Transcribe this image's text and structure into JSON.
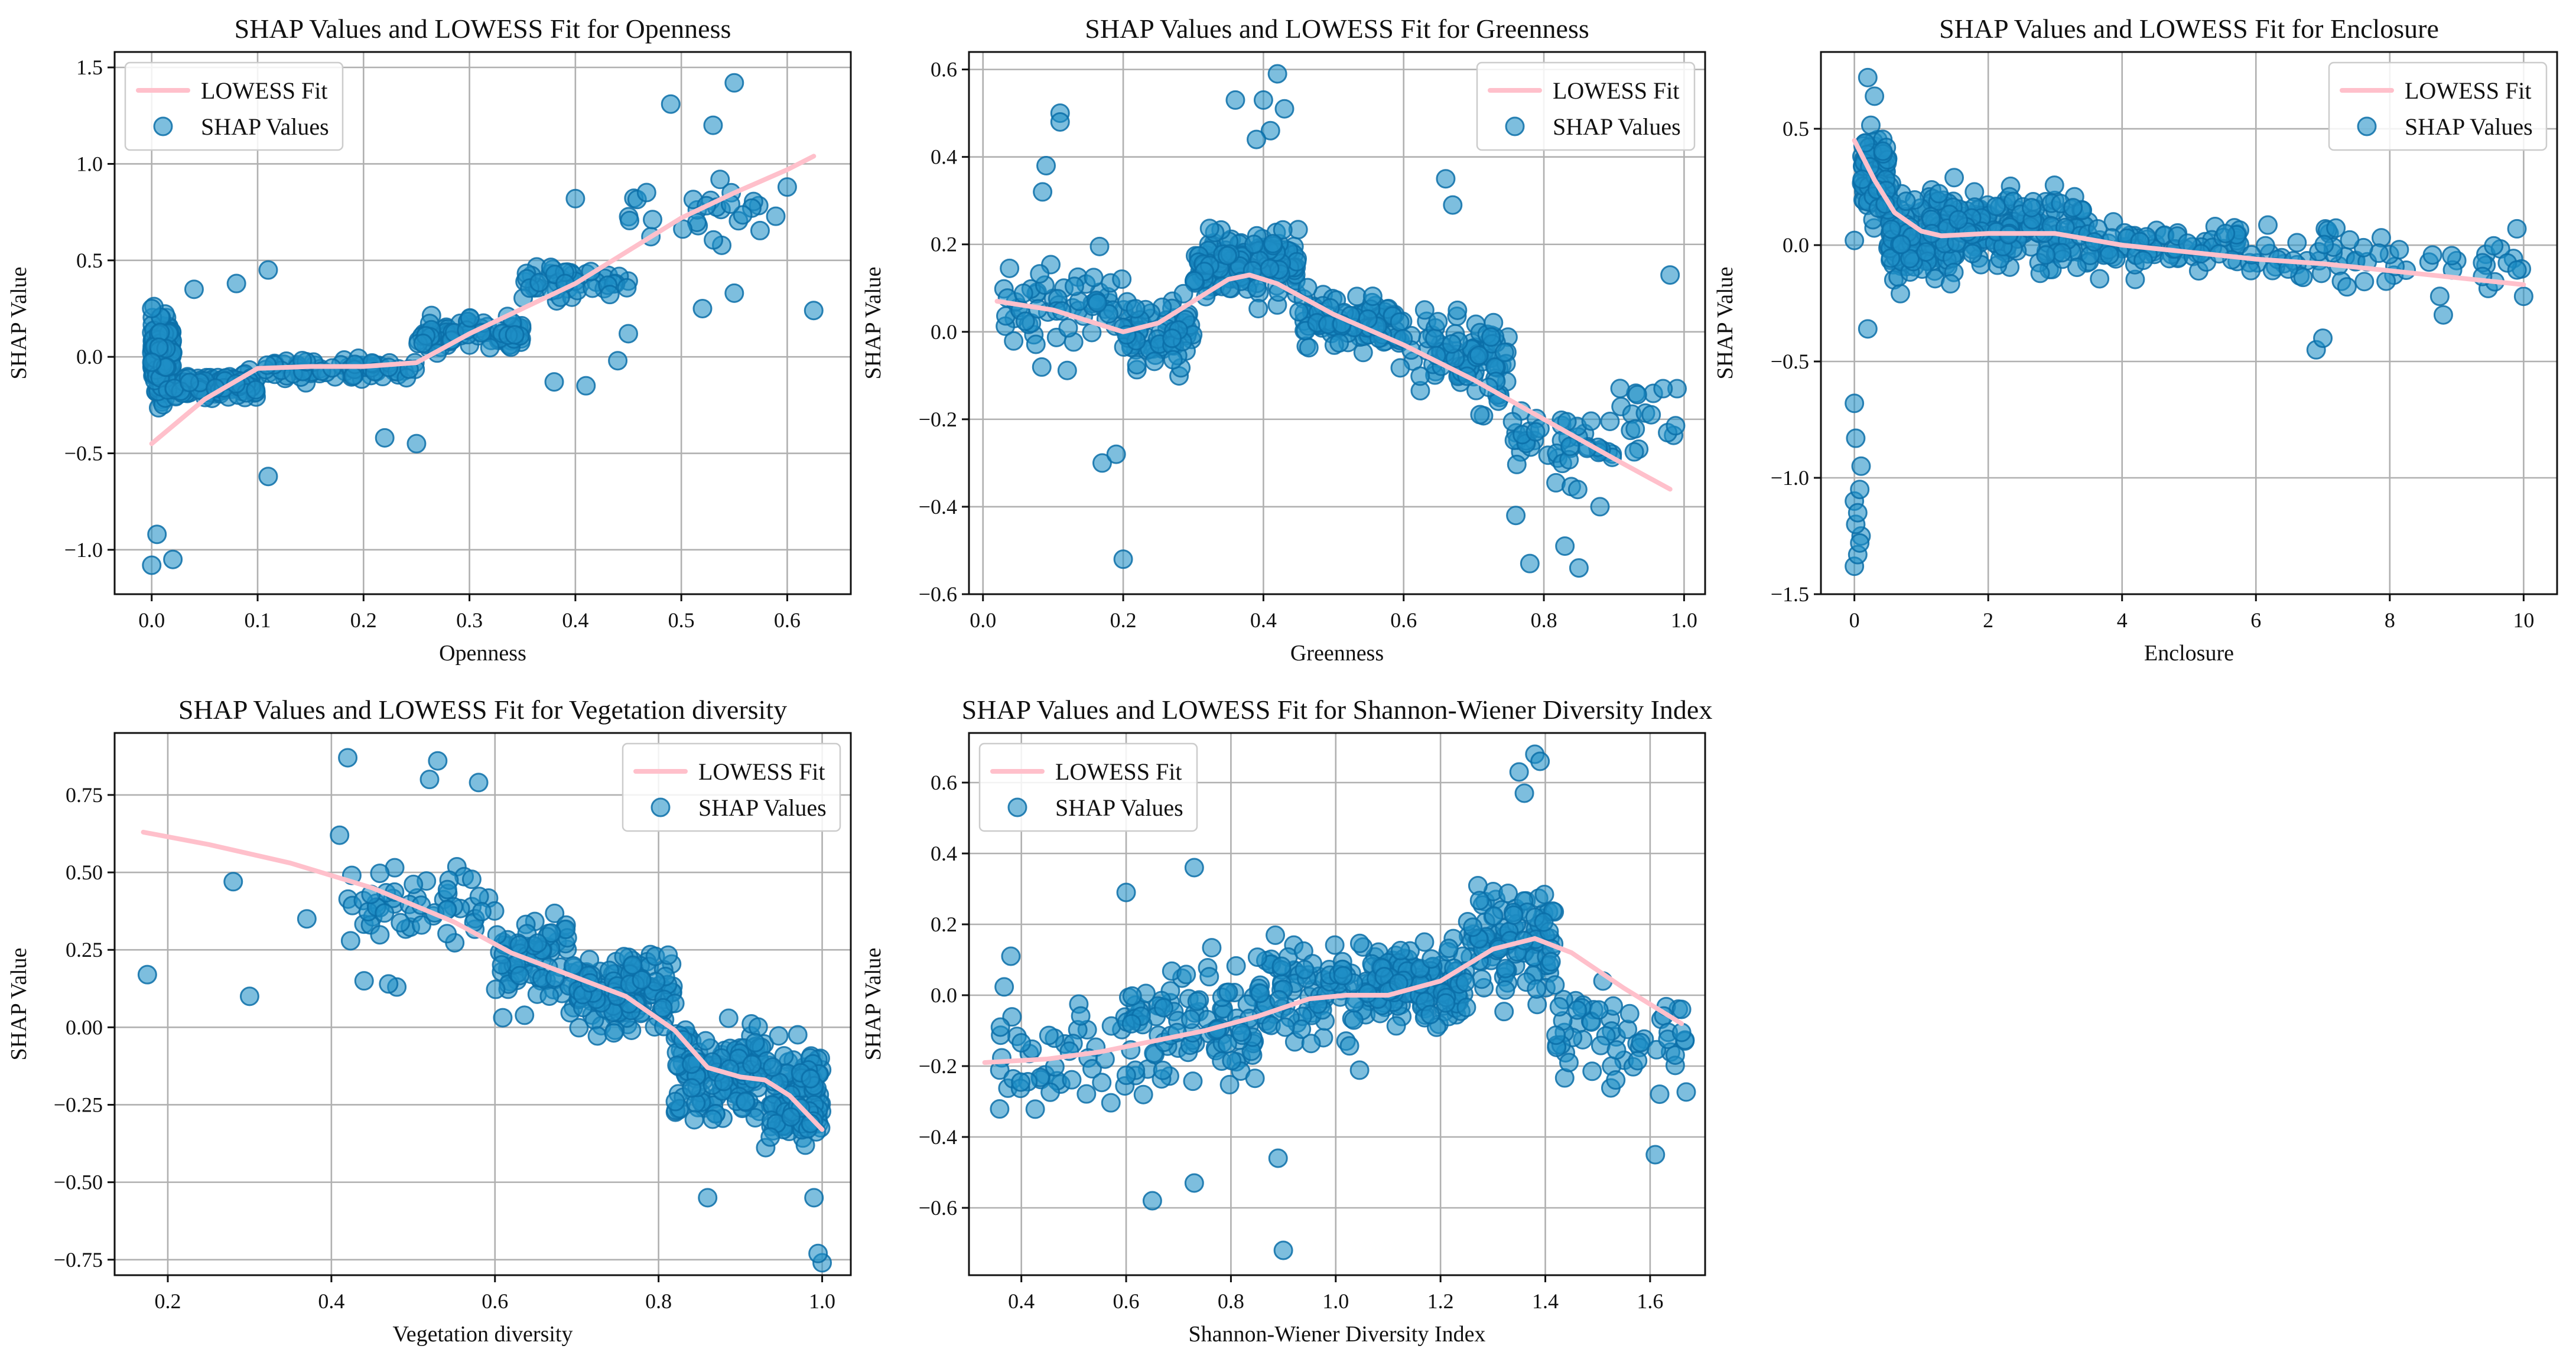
{
  "colors": {
    "lowess": "#ffc0cb",
    "points": "#1f8fc7",
    "point_edge": "#0b6fa8",
    "grid": "#b0b0b0"
  },
  "chart_data": [
    {
      "id": "openness",
      "type": "scatter",
      "title": "SHAP Values and LOWESS Fit for Openness",
      "xlabel": "Openness",
      "ylabel": "SHAP Value",
      "xlim": [
        -0.035,
        0.66
      ],
      "ylim": [
        -1.23,
        1.58
      ],
      "xticks": [
        0.0,
        0.1,
        0.2,
        0.3,
        0.4,
        0.5,
        0.6
      ],
      "xtick_labels": [
        "0.0",
        "0.1",
        "0.2",
        "0.3",
        "0.4",
        "0.5",
        "0.6"
      ],
      "yticks": [
        -1.0,
        -0.5,
        0.0,
        0.5,
        1.0,
        1.5
      ],
      "ytick_labels": [
        "−1.0",
        "−0.5",
        "0.0",
        "0.5",
        "1.0",
        "1.5"
      ],
      "legend": {
        "position": "upper-left",
        "labels": [
          "LOWESS Fit",
          "SHAP Values"
        ]
      },
      "lowess": [
        [
          0.0,
          -0.45
        ],
        [
          0.05,
          -0.22
        ],
        [
          0.1,
          -0.06
        ],
        [
          0.15,
          -0.05
        ],
        [
          0.2,
          -0.05
        ],
        [
          0.25,
          -0.03
        ],
        [
          0.3,
          0.12
        ],
        [
          0.35,
          0.25
        ],
        [
          0.4,
          0.38
        ],
        [
          0.45,
          0.55
        ],
        [
          0.5,
          0.72
        ],
        [
          0.55,
          0.85
        ],
        [
          0.6,
          0.97
        ],
        [
          0.625,
          1.04
        ]
      ],
      "n_points": 560,
      "segments": [
        [
          0.0,
          0.02,
          0.0,
          0.35,
          0.5
        ],
        [
          0.02,
          0.1,
          -0.15,
          0.12,
          0.3
        ],
        [
          0.1,
          0.25,
          -0.07,
          0.12,
          0.18
        ],
        [
          0.25,
          0.35,
          0.12,
          0.15,
          0.22
        ],
        [
          0.35,
          0.45,
          0.38,
          0.18,
          0.1
        ],
        [
          0.45,
          0.6,
          0.75,
          0.28,
          0.05
        ]
      ],
      "extras": [
        [
          0.0,
          0.25
        ],
        [
          0.0,
          -1.08
        ],
        [
          0.005,
          -0.92
        ],
        [
          0.02,
          -1.05
        ],
        [
          0.55,
          1.42
        ],
        [
          0.53,
          1.2
        ],
        [
          0.49,
          1.31
        ],
        [
          0.6,
          0.88
        ],
        [
          0.625,
          0.24
        ],
        [
          0.55,
          0.33
        ],
        [
          0.52,
          0.25
        ],
        [
          0.45,
          0.12
        ],
        [
          0.41,
          -0.15
        ],
        [
          0.38,
          -0.13
        ],
        [
          0.44,
          -0.02
        ],
        [
          0.4,
          0.82
        ],
        [
          0.11,
          -0.62
        ],
        [
          0.11,
          0.45
        ],
        [
          0.08,
          0.38
        ],
        [
          0.04,
          0.35
        ],
        [
          0.22,
          -0.42
        ],
        [
          0.25,
          -0.45
        ]
      ]
    },
    {
      "id": "greenness",
      "type": "scatter",
      "title": "SHAP Values and LOWESS Fit for Greenness",
      "xlabel": "Greenness",
      "ylabel": "SHAP Value",
      "xlim": [
        -0.02,
        1.03
      ],
      "ylim": [
        -0.6,
        0.64
      ],
      "xticks": [
        0.0,
        0.2,
        0.4,
        0.6,
        0.8,
        1.0
      ],
      "xtick_labels": [
        "0.0",
        "0.2",
        "0.4",
        "0.6",
        "0.8",
        "1.0"
      ],
      "yticks": [
        -0.6,
        -0.4,
        -0.2,
        0.0,
        0.2,
        0.4,
        0.6
      ],
      "ytick_labels": [
        "−0.6",
        "−0.4",
        "−0.2",
        "0.0",
        "0.2",
        "0.4",
        "0.6"
      ],
      "legend": {
        "position": "upper-right",
        "labels": [
          "LOWESS Fit",
          "SHAP Values"
        ]
      },
      "lowess": [
        [
          0.02,
          0.07
        ],
        [
          0.1,
          0.05
        ],
        [
          0.2,
          0.0
        ],
        [
          0.25,
          0.02
        ],
        [
          0.3,
          0.07
        ],
        [
          0.35,
          0.12
        ],
        [
          0.38,
          0.13
        ],
        [
          0.42,
          0.11
        ],
        [
          0.5,
          0.04
        ],
        [
          0.6,
          -0.03
        ],
        [
          0.7,
          -0.11
        ],
        [
          0.8,
          -0.2
        ],
        [
          0.9,
          -0.29
        ],
        [
          0.98,
          -0.36
        ]
      ],
      "n_points": 560,
      "segments": [
        [
          0.02,
          0.2,
          0.05,
          0.2,
          0.12
        ],
        [
          0.2,
          0.3,
          0.0,
          0.16,
          0.13
        ],
        [
          0.3,
          0.45,
          0.15,
          0.13,
          0.28
        ],
        [
          0.45,
          0.6,
          0.02,
          0.13,
          0.22
        ],
        [
          0.6,
          0.75,
          -0.07,
          0.18,
          0.15
        ],
        [
          0.75,
          0.9,
          -0.25,
          0.16,
          0.08
        ],
        [
          0.9,
          0.99,
          -0.22,
          0.14,
          0.04
        ]
      ],
      "extras": [
        [
          0.11,
          0.5
        ],
        [
          0.11,
          0.48
        ],
        [
          0.09,
          0.38
        ],
        [
          0.085,
          0.32
        ],
        [
          0.4,
          0.53
        ],
        [
          0.41,
          0.46
        ],
        [
          0.43,
          0.51
        ],
        [
          0.42,
          0.59
        ],
        [
          0.39,
          0.44
        ],
        [
          0.36,
          0.53
        ],
        [
          0.2,
          -0.52
        ],
        [
          0.17,
          -0.3
        ],
        [
          0.19,
          -0.28
        ],
        [
          0.98,
          0.13
        ],
        [
          0.99,
          -0.13
        ],
        [
          0.97,
          -0.13
        ],
        [
          0.76,
          -0.42
        ],
        [
          0.78,
          -0.53
        ],
        [
          0.85,
          -0.54
        ],
        [
          0.83,
          -0.49
        ],
        [
          0.88,
          -0.4
        ],
        [
          0.66,
          0.35
        ],
        [
          0.67,
          0.29
        ],
        [
          0.63,
          0.05
        ]
      ]
    },
    {
      "id": "enclosure",
      "type": "scatter",
      "title": "SHAP Values and LOWESS Fit for Enclosure",
      "xlabel": "Enclosure",
      "ylabel": "SHAP Value",
      "xlim": [
        -0.5,
        10.5
      ],
      "ylim": [
        -1.5,
        0.83
      ],
      "xticks": [
        0,
        2,
        4,
        6,
        8,
        10
      ],
      "xtick_labels": [
        "0",
        "2",
        "4",
        "6",
        "8",
        "10"
      ],
      "yticks": [
        -1.5,
        -1.0,
        -0.5,
        0.0,
        0.5
      ],
      "ytick_labels": [
        "−1.5",
        "−1.0",
        "−0.5",
        "0.0",
        "0.5"
      ],
      "legend": {
        "position": "upper-right",
        "labels": [
          "LOWESS Fit",
          "SHAP Values"
        ]
      },
      "lowess": [
        [
          0.0,
          0.45
        ],
        [
          0.3,
          0.28
        ],
        [
          0.6,
          0.14
        ],
        [
          1.0,
          0.06
        ],
        [
          1.3,
          0.04
        ],
        [
          2.0,
          0.05
        ],
        [
          3.0,
          0.05
        ],
        [
          4.0,
          0.0
        ],
        [
          5.0,
          -0.03
        ],
        [
          6.0,
          -0.06
        ],
        [
          7.0,
          -0.08
        ],
        [
          8.0,
          -0.11
        ],
        [
          9.0,
          -0.14
        ],
        [
          10.0,
          -0.17
        ]
      ],
      "n_points": 560,
      "segments": [
        [
          0.1,
          0.5,
          0.3,
          0.32,
          0.16
        ],
        [
          0.5,
          1.5,
          0.05,
          0.34,
          0.3
        ],
        [
          1.5,
          3.5,
          0.07,
          0.28,
          0.28
        ],
        [
          3.5,
          6.0,
          0.0,
          0.2,
          0.15
        ],
        [
          6.0,
          8.0,
          -0.06,
          0.25,
          0.08
        ],
        [
          8.0,
          10.0,
          -0.12,
          0.26,
          0.03
        ]
      ],
      "extras": [
        [
          0.0,
          -1.38
        ],
        [
          0.05,
          -1.33
        ],
        [
          0.0,
          -1.1
        ],
        [
          0.1,
          -1.25
        ],
        [
          0.02,
          -1.2
        ],
        [
          0.08,
          -1.05
        ],
        [
          0.0,
          -0.68
        ],
        [
          0.02,
          -0.83
        ],
        [
          0.1,
          -0.95
        ],
        [
          0.05,
          -1.15
        ],
        [
          0.08,
          -1.28
        ],
        [
          0.0,
          0.02
        ],
        [
          0.2,
          0.72
        ],
        [
          0.3,
          0.64
        ],
        [
          0.2,
          -0.36
        ],
        [
          6.9,
          -0.45
        ],
        [
          7.0,
          -0.4
        ],
        [
          8.8,
          -0.3
        ],
        [
          9.9,
          0.07
        ],
        [
          10.0,
          -0.22
        ]
      ]
    },
    {
      "id": "vegetation",
      "type": "scatter",
      "title": "SHAP Values and LOWESS Fit for Vegetation diversity",
      "xlabel": "Vegetation diversity",
      "ylabel": "SHAP Value",
      "xlim": [
        0.135,
        1.035
      ],
      "ylim": [
        -0.8,
        0.95
      ],
      "xticks": [
        0.2,
        0.4,
        0.6,
        0.8,
        1.0
      ],
      "xtick_labels": [
        "0.2",
        "0.4",
        "0.6",
        "0.8",
        "1.0"
      ],
      "yticks": [
        -0.75,
        -0.5,
        -0.25,
        0.0,
        0.25,
        0.5,
        0.75
      ],
      "ytick_labels": [
        "−0.75",
        "−0.50",
        "−0.25",
        "0.00",
        "0.25",
        "0.50",
        "0.75"
      ],
      "legend": {
        "position": "upper-right",
        "labels": [
          "LOWESS Fit",
          "SHAP Values"
        ]
      },
      "lowess": [
        [
          0.17,
          0.63
        ],
        [
          0.25,
          0.59
        ],
        [
          0.35,
          0.53
        ],
        [
          0.45,
          0.45
        ],
        [
          0.55,
          0.34
        ],
        [
          0.62,
          0.24
        ],
        [
          0.7,
          0.16
        ],
        [
          0.76,
          0.1
        ],
        [
          0.82,
          -0.01
        ],
        [
          0.86,
          -0.13
        ],
        [
          0.9,
          -0.16
        ],
        [
          0.93,
          -0.17
        ],
        [
          0.96,
          -0.22
        ],
        [
          1.0,
          -0.33
        ]
      ],
      "n_points": 560,
      "segments": [
        [
          0.42,
          0.6,
          0.4,
          0.22,
          0.1
        ],
        [
          0.6,
          0.7,
          0.22,
          0.28,
          0.14
        ],
        [
          0.7,
          0.82,
          0.12,
          0.22,
          0.24
        ],
        [
          0.82,
          0.93,
          -0.14,
          0.24,
          0.26
        ],
        [
          0.93,
          1.0,
          -0.22,
          0.26,
          0.26
        ]
      ],
      "extras": [
        [
          0.175,
          0.17
        ],
        [
          0.28,
          0.47
        ],
        [
          0.3,
          0.1
        ],
        [
          0.37,
          0.35
        ],
        [
          0.42,
          0.87
        ],
        [
          0.41,
          0.62
        ],
        [
          0.53,
          0.86
        ],
        [
          0.52,
          0.8
        ],
        [
          0.58,
          0.79
        ],
        [
          0.44,
          0.15
        ],
        [
          0.48,
          0.13
        ],
        [
          0.47,
          0.14
        ],
        [
          1.0,
          -0.76
        ],
        [
          0.995,
          -0.73
        ],
        [
          0.99,
          -0.55
        ],
        [
          0.86,
          -0.55
        ]
      ]
    },
    {
      "id": "shannon",
      "type": "scatter",
      "title": "SHAP Values and LOWESS Fit for Shannon-Wiener Diversity Index",
      "xlabel": "Shannon-Wiener Diversity Index",
      "ylabel": "SHAP Value",
      "xlim": [
        0.3,
        1.705
      ],
      "ylim": [
        -0.79,
        0.74
      ],
      "xticks": [
        0.4,
        0.6,
        0.8,
        1.0,
        1.2,
        1.4,
        1.6
      ],
      "xtick_labels": [
        "0.4",
        "0.6",
        "0.8",
        "1.0",
        "1.2",
        "1.4",
        "1.6"
      ],
      "yticks": [
        -0.6,
        -0.4,
        -0.2,
        0.0,
        0.2,
        0.4,
        0.6
      ],
      "ytick_labels": [
        "−0.6",
        "−0.4",
        "−0.2",
        "0.0",
        "0.2",
        "0.4",
        "0.6"
      ],
      "legend": {
        "position": "upper-left",
        "labels": [
          "LOWESS Fit",
          "SHAP Values"
        ]
      },
      "lowess": [
        [
          0.33,
          -0.19
        ],
        [
          0.45,
          -0.18
        ],
        [
          0.55,
          -0.16
        ],
        [
          0.65,
          -0.13
        ],
        [
          0.75,
          -0.1
        ],
        [
          0.85,
          -0.06
        ],
        [
          0.95,
          -0.01
        ],
        [
          1.02,
          0.0
        ],
        [
          1.1,
          0.0
        ],
        [
          1.2,
          0.04
        ],
        [
          1.3,
          0.13
        ],
        [
          1.38,
          0.16
        ],
        [
          1.45,
          0.12
        ],
        [
          1.55,
          0.02
        ],
        [
          1.66,
          -0.08
        ]
      ],
      "n_points": 560,
      "segments": [
        [
          0.35,
          0.6,
          -0.17,
          0.28,
          0.1
        ],
        [
          0.6,
          0.85,
          -0.1,
          0.34,
          0.18
        ],
        [
          0.85,
          1.05,
          0.0,
          0.32,
          0.17
        ],
        [
          1.05,
          1.25,
          0.03,
          0.2,
          0.25
        ],
        [
          1.25,
          1.42,
          0.16,
          0.26,
          0.22
        ],
        [
          1.42,
          1.67,
          -0.12,
          0.24,
          0.08
        ]
      ],
      "extras": [
        [
          0.9,
          -0.72
        ],
        [
          0.65,
          -0.58
        ],
        [
          0.38,
          0.11
        ],
        [
          0.6,
          0.29
        ],
        [
          0.73,
          0.36
        ],
        [
          1.35,
          0.63
        ],
        [
          1.38,
          0.68
        ],
        [
          1.39,
          0.66
        ],
        [
          1.36,
          0.57
        ],
        [
          1.61,
          -0.45
        ],
        [
          1.66,
          -0.04
        ],
        [
          1.51,
          0.04
        ],
        [
          0.73,
          -0.53
        ],
        [
          0.89,
          -0.46
        ],
        [
          0.36,
          -0.09
        ]
      ]
    }
  ]
}
